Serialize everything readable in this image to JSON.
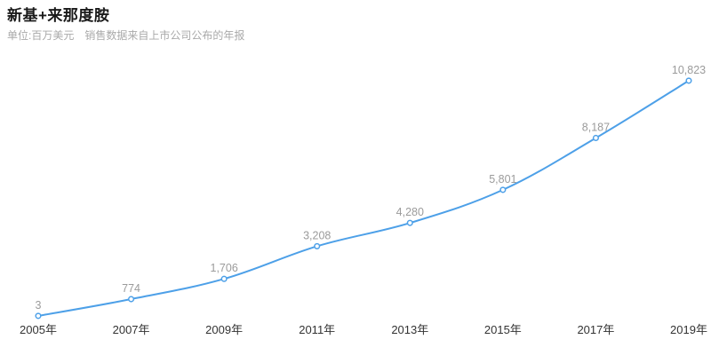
{
  "header": {
    "title": "新基+来那度胺",
    "subtitle": "单位:百万美元　销售数据来自上市公司公布的年报"
  },
  "chart_data": {
    "type": "line",
    "title": "新基+来那度胺",
    "subtitle": "单位:百万美元　销售数据来自上市公司公布的年报",
    "categories": [
      "2005年",
      "2007年",
      "2009年",
      "2011年",
      "2013年",
      "2015年",
      "2017年",
      "2019年"
    ],
    "values": [
      3,
      774,
      1706,
      3208,
      4280,
      5801,
      8187,
      10823
    ],
    "point_labels": [
      "3",
      "774",
      "1,706",
      "3,208",
      "4,280",
      "5,801",
      "8,187",
      "10,823"
    ],
    "xlabel": "",
    "ylabel": "",
    "ylim": [
      0,
      11000
    ],
    "grid": false,
    "legend": "none",
    "marker": "hollow-circle",
    "colors": {
      "line": "#4DA0E8",
      "marker_fill": "#ffffff",
      "marker_stroke": "#4DA0E8",
      "point_label": "#9b9b9b",
      "axis_label": "#333333",
      "title": "#1a1a1a",
      "subtitle": "#a9a9a9",
      "background": "#ffffff"
    }
  }
}
